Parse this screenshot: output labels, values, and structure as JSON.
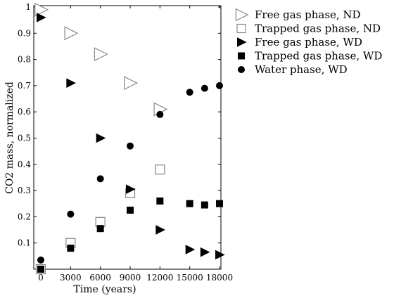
{
  "chart_data": {
    "type": "scatter",
    "xlabel": "Time (years)",
    "ylabel": "CO2 mass, normalized",
    "xlim": [
      0,
      18000
    ],
    "ylim": [
      0,
      1
    ],
    "xticks": [
      0,
      3000,
      6000,
      9000,
      12000,
      15000,
      18000
    ],
    "xtick_labels": [
      "0",
      "3000",
      "6000",
      "9000",
      "12000",
      "15000",
      "18000"
    ],
    "yticks": [
      0.1,
      0.2,
      0.3,
      0.4,
      0.5,
      0.6,
      0.7,
      0.8,
      0.9,
      1
    ],
    "ytick_labels": [
      "0.1",
      "0.2",
      "0.3",
      "0.4",
      "0.5",
      "0.6",
      "0.7",
      "0.8",
      "0.9",
      "1"
    ],
    "grid": false,
    "legend_position": "outside right, top",
    "series": [
      {
        "name": "Free gas phase, ND",
        "marker": "triangle-right-open",
        "color": "#888888",
        "points": [
          [
            0,
            0.99
          ],
          [
            3000,
            0.9
          ],
          [
            6000,
            0.82
          ],
          [
            9000,
            0.71
          ],
          [
            12000,
            0.61
          ]
        ]
      },
      {
        "name": "Trapped gas phase, ND",
        "marker": "square-open",
        "color": "#888888",
        "points": [
          [
            0,
            0.0
          ],
          [
            3000,
            0.1
          ],
          [
            6000,
            0.18
          ],
          [
            9000,
            0.29
          ],
          [
            12000,
            0.38
          ]
        ]
      },
      {
        "name": "Free gas phase, WD",
        "marker": "triangle-right-filled",
        "color": "#000000",
        "points": [
          [
            0,
            0.96
          ],
          [
            3000,
            0.71
          ],
          [
            6000,
            0.5
          ],
          [
            9000,
            0.305
          ],
          [
            12000,
            0.15
          ],
          [
            15000,
            0.075
          ],
          [
            16500,
            0.065
          ],
          [
            18000,
            0.055
          ]
        ]
      },
      {
        "name": "Trapped gas phase, WD",
        "marker": "square-filled",
        "color": "#000000",
        "points": [
          [
            0,
            0.0
          ],
          [
            3000,
            0.08
          ],
          [
            6000,
            0.155
          ],
          [
            9000,
            0.225
          ],
          [
            12000,
            0.26
          ],
          [
            15000,
            0.25
          ],
          [
            16500,
            0.245
          ],
          [
            18000,
            0.25
          ]
        ]
      },
      {
        "name": "Water phase, WD",
        "marker": "circle-filled",
        "color": "#000000",
        "points": [
          [
            0,
            0.035
          ],
          [
            3000,
            0.21
          ],
          [
            6000,
            0.345
          ],
          [
            9000,
            0.47
          ],
          [
            12000,
            0.59
          ],
          [
            15000,
            0.675
          ],
          [
            16500,
            0.69
          ],
          [
            18000,
            0.7
          ]
        ]
      }
    ]
  }
}
